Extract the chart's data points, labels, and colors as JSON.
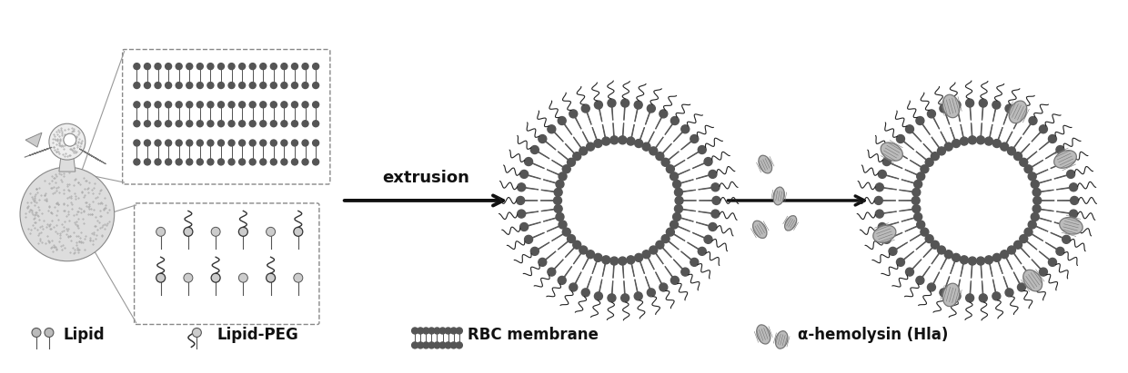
{
  "bg_color": "#ffffff",
  "text_color": "#111111",
  "extrusion_label": "extrusion",
  "legend_items": [
    {
      "label": "Lipid"
    },
    {
      "label": "Lipid-PEG"
    },
    {
      "label": "RBC membrane"
    },
    {
      "label": "α-hemolysin (Hla)"
    }
  ],
  "figsize": [
    12.4,
    4.11
  ],
  "dpi": 100,
  "lipid_color": "#555555",
  "peg_color": "#333333",
  "hemo_color": "#777777",
  "box_color": "#888888"
}
